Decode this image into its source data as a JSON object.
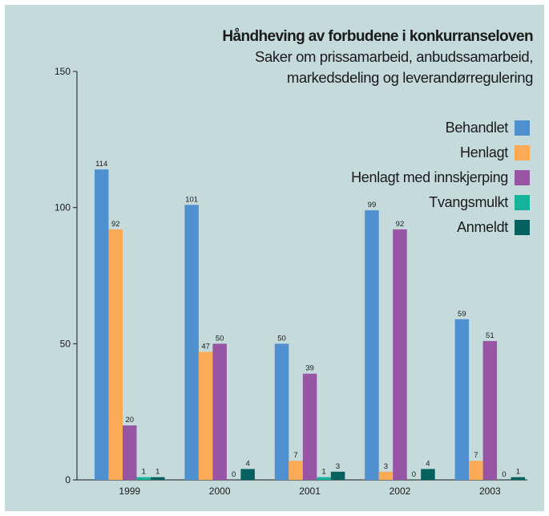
{
  "chart_data": {
    "type": "bar",
    "title": "Håndheving av forbudene i konkurranseloven",
    "subtitle_lines": [
      "Saker om prissamarbeid, anbudssamarbeid,",
      "markedsdeling og leverandørregulering"
    ],
    "categories": [
      "1999",
      "2000",
      "2001",
      "2002",
      "2003"
    ],
    "series": [
      {
        "name": "Behandlet",
        "color": "#4f90d0",
        "values": [
          114,
          101,
          50,
          99,
          59
        ]
      },
      {
        "name": "Henlagt",
        "color": "#fcaa56",
        "values": [
          92,
          47,
          7,
          3,
          7
        ]
      },
      {
        "name": "Henlagt med innskjerping",
        "color": "#9755a4",
        "values": [
          20,
          50,
          39,
          92,
          51
        ]
      },
      {
        "name": "Tvangsmulkt",
        "color": "#15b49a",
        "values": [
          1,
          0,
          1,
          0,
          0
        ]
      },
      {
        "name": "Anmeldt",
        "color": "#04615f",
        "values": [
          1,
          4,
          3,
          4,
          1
        ]
      }
    ],
    "ylim": [
      0,
      150
    ],
    "yticks": [
      0,
      50,
      100,
      150
    ],
    "xlabel": "",
    "ylabel": "",
    "grid": false,
    "legend_position": "top-right",
    "background_color": "#c5dadb"
  }
}
